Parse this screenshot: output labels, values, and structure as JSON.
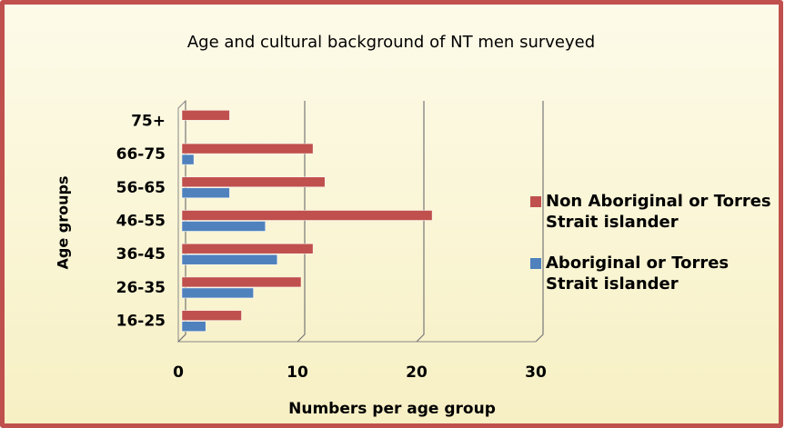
{
  "chart_data": {
    "type": "bar",
    "orientation": "horizontal",
    "title": "Age and  cultural background of NT men surveyed",
    "x_label": "Numbers per age group",
    "y_label": "Age groups",
    "categories": [
      "75+",
      "66-75",
      "56-65",
      "46-55",
      "36-45",
      "26-35",
      "16-25"
    ],
    "series": [
      {
        "name": "Non Aboriginal or Torres Strait islander",
        "color": "#c0504d",
        "values": [
          4,
          11,
          12,
          21,
          11,
          10,
          5
        ]
      },
      {
        "name": "Aboriginal or Torres Strait islander",
        "color": "#4f81bd",
        "values": [
          0,
          1,
          4,
          7,
          8,
          6,
          2
        ]
      }
    ],
    "xlim": [
      0,
      30
    ],
    "xticks": [
      0,
      10,
      20,
      30
    ],
    "grid": true,
    "legend": "right"
  }
}
